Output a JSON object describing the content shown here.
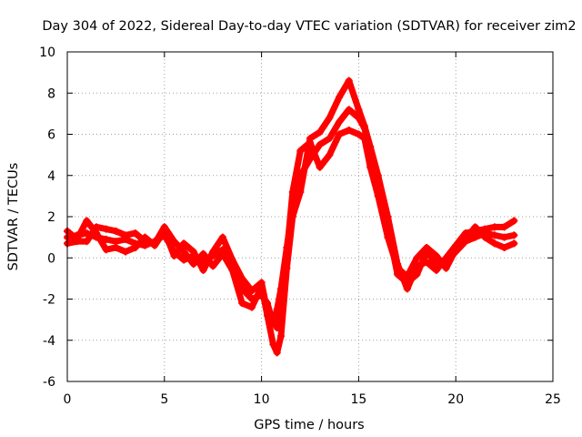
{
  "chart_data": {
    "type": "scatter",
    "title": "Day 304 of 2022, Sidereal Day-to-day VTEC variation (SDTVAR) for receiver zim2",
    "xlabel": "GPS time / hours",
    "ylabel": "SDTVAR / TECUs",
    "xlim": [
      0,
      25
    ],
    "ylim": [
      -6,
      10
    ],
    "xticks": [
      0,
      5,
      10,
      15,
      20,
      25
    ],
    "yticks": [
      -6,
      -4,
      -2,
      0,
      2,
      4,
      6,
      8,
      10
    ],
    "grid": true,
    "marker": "+",
    "series": [
      {
        "name": "SDTVAR",
        "color": "#ff0000",
        "x": [
          0.0,
          0.5,
          1.0,
          1.5,
          2.0,
          2.5,
          3.0,
          3.5,
          4.0,
          4.5,
          5.0,
          5.5,
          6.0,
          6.5,
          7.0,
          7.5,
          8.0,
          8.5,
          9.0,
          9.5,
          10.0,
          10.3,
          10.6,
          10.8,
          11.0,
          11.3,
          11.6,
          12.0,
          12.5,
          13.0,
          13.5,
          14.0,
          14.5,
          15.0,
          15.3,
          15.6,
          16.0,
          16.5,
          17.0,
          17.5,
          18.0,
          18.5,
          19.0,
          19.5,
          20.0,
          20.5,
          21.0,
          21.5,
          22.0,
          22.5,
          23.0
        ],
        "y": [
          1.0,
          1.1,
          1.2,
          1.0,
          0.9,
          0.8,
          0.9,
          0.7,
          0.6,
          0.8,
          1.1,
          0.3,
          -0.1,
          0.1,
          -0.2,
          0.1,
          0.4,
          -0.3,
          -1.5,
          -2.0,
          -1.8,
          -2.2,
          -3.2,
          -2.5,
          -1.5,
          0.5,
          2.5,
          4.0,
          4.8,
          5.5,
          5.8,
          6.6,
          7.2,
          6.8,
          6.3,
          5.0,
          3.5,
          1.5,
          -0.8,
          -1.2,
          -0.8,
          0.3,
          -0.3,
          -0.2,
          0.3,
          0.8,
          1.0,
          1.2,
          1.1,
          1.0,
          1.1
        ]
      },
      {
        "name": "SDTVAR",
        "color": "#ff0000",
        "x": [
          0.0,
          0.5,
          1.0,
          1.5,
          2.0,
          2.5,
          3.0,
          3.5,
          4.0,
          4.5,
          5.0,
          5.5,
          6.0,
          6.5,
          7.0,
          7.5,
          8.0,
          8.5,
          9.0,
          9.5,
          10.0,
          10.3,
          10.6,
          10.8,
          11.0,
          11.3,
          11.6,
          12.0,
          12.5,
          13.0,
          13.5,
          14.0,
          14.5,
          15.0,
          15.3,
          15.6,
          16.0,
          16.5,
          17.0,
          17.5,
          18.0,
          18.5,
          19.0,
          19.5,
          20.0,
          20.5,
          21.0,
          21.5,
          22.0,
          22.5,
          23.0
        ],
        "y": [
          0.7,
          0.8,
          0.8,
          1.5,
          1.4,
          1.3,
          1.1,
          1.2,
          0.8,
          0.7,
          1.5,
          0.8,
          0.3,
          -0.3,
          0.2,
          -0.4,
          0.2,
          -0.6,
          -2.2,
          -2.4,
          -1.4,
          -2.8,
          -4.2,
          -4.6,
          -3.8,
          -0.5,
          2.0,
          3.2,
          5.8,
          6.1,
          6.8,
          7.8,
          8.6,
          7.2,
          6.4,
          5.4,
          4.0,
          2.0,
          -0.3,
          -1.5,
          -0.4,
          -0.2,
          -0.6,
          0.0,
          0.6,
          1.2,
          1.3,
          1.4,
          1.5,
          1.5,
          1.8
        ]
      },
      {
        "name": "SDTVAR",
        "color": "#ff0000",
        "x": [
          0.0,
          0.5,
          1.0,
          1.5,
          2.0,
          2.5,
          3.0,
          3.5,
          4.0,
          4.5,
          5.0,
          5.5,
          6.0,
          6.5,
          7.0,
          7.5,
          8.0,
          8.5,
          9.0,
          9.5,
          10.0,
          10.3,
          10.6,
          10.8,
          11.0,
          11.3,
          11.6,
          12.0,
          12.5,
          13.0,
          13.5,
          14.0,
          14.5,
          15.0,
          15.3,
          15.6,
          16.0,
          16.5,
          17.0,
          17.5,
          18.0,
          18.5,
          19.0,
          19.5,
          20.0,
          20.5,
          21.0,
          21.5,
          22.0,
          22.5,
          23.0
        ],
        "y": [
          1.3,
          0.9,
          1.8,
          1.2,
          0.4,
          0.5,
          0.3,
          0.5,
          1.0,
          0.6,
          1.3,
          0.1,
          0.7,
          0.3,
          -0.6,
          0.3,
          1.0,
          -0.1,
          -1.0,
          -1.6,
          -1.2,
          -2.6,
          -3.0,
          -3.4,
          -2.2,
          0.2,
          3.2,
          5.2,
          5.6,
          4.4,
          5.0,
          6.0,
          6.2,
          6.0,
          5.8,
          4.4,
          3.0,
          1.0,
          -0.5,
          -0.9,
          0.0,
          0.5,
          0.1,
          -0.5,
          0.4,
          0.9,
          1.5,
          1.0,
          0.7,
          0.5,
          0.7
        ]
      }
    ]
  }
}
